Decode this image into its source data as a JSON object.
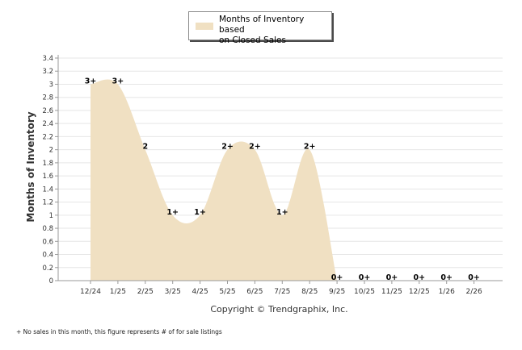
{
  "chart_data": {
    "type": "area",
    "legend": [
      "Months of Inventory based",
      "on Closed Sales"
    ],
    "ylabel": "Months of Inventory",
    "xlabel": "",
    "ylim": [
      0,
      3.4
    ],
    "yticks": [
      "0",
      "0.2",
      "0.4",
      "0.6",
      "0.8",
      "1",
      "1.2",
      "1.4",
      "1.6",
      "1.8",
      "2",
      "2.2",
      "2.4",
      "2.6",
      "2.8",
      "3",
      "3.2",
      "3.4"
    ],
    "categories": [
      "12/24",
      "1/25",
      "2/25",
      "3/25",
      "4/25",
      "5/25",
      "6/25",
      "7/25",
      "8/25",
      "9/25",
      "10/25",
      "11/25",
      "12/25",
      "1/26",
      "2/26"
    ],
    "values": [
      3,
      3,
      2,
      1,
      1,
      2,
      2,
      1,
      2,
      0,
      0,
      0,
      0,
      0,
      0
    ],
    "point_labels": [
      "3+",
      "3+",
      "2",
      "1+",
      "1+",
      "2+",
      "2+",
      "1+",
      "2+",
      "0+",
      "0+",
      "0+",
      "0+",
      "0+",
      "0+"
    ],
    "grid": true,
    "legend_position": "top-center",
    "colors": {
      "fill": "#f0e0c2",
      "grid": "#e6e6e6",
      "axis": "#9a9a9a"
    }
  },
  "copyright": "Copyright © Trendgraphix, Inc.",
  "footnote": "+  No sales in this month, this figure represents # of for sale listings"
}
